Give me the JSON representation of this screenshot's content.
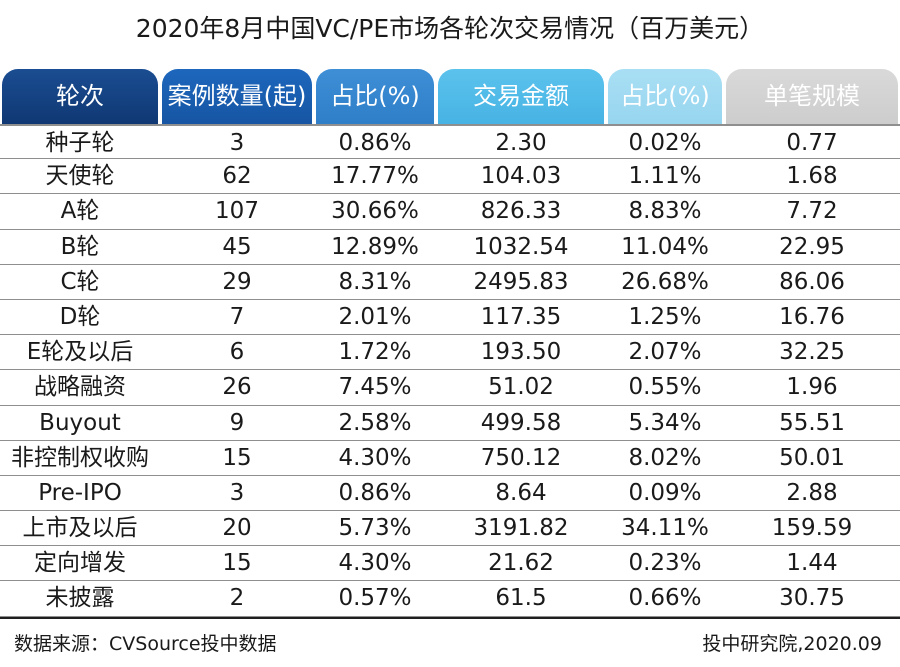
{
  "title": "2020年8月中国VC/PE市场各轮次交易情况（百万美元）",
  "table": {
    "headers": [
      "轮次",
      "案例数量(起)",
      "占比(%)",
      "交易金额",
      "占比(%)",
      "单笔规模"
    ],
    "header_colors": [
      "#0f3873",
      "#1655a3",
      "#2e7ec8",
      "#47b3e4",
      "#97d5ef",
      "#cdcdcd"
    ],
    "rows": [
      [
        "种子轮",
        "3",
        "0.86%",
        "2.30",
        "0.02%",
        "0.77"
      ],
      [
        "天使轮",
        "62",
        "17.77%",
        "104.03",
        "1.11%",
        "1.68"
      ],
      [
        "A轮",
        "107",
        "30.66%",
        "826.33",
        "8.83%",
        "7.72"
      ],
      [
        "B轮",
        "45",
        "12.89%",
        "1032.54",
        "11.04%",
        "22.95"
      ],
      [
        "C轮",
        "29",
        "8.31%",
        "2495.83",
        "26.68%",
        "86.06"
      ],
      [
        "D轮",
        "7",
        "2.01%",
        "117.35",
        "1.25%",
        "16.76"
      ],
      [
        "E轮及以后",
        "6",
        "1.72%",
        "193.50",
        "2.07%",
        "32.25"
      ],
      [
        "战略融资",
        "26",
        "7.45%",
        "51.02",
        "0.55%",
        "1.96"
      ],
      [
        "Buyout",
        "9",
        "2.58%",
        "499.58",
        "5.34%",
        "55.51"
      ],
      [
        "非控制权收购",
        "15",
        "4.30%",
        "750.12",
        "8.02%",
        "50.01"
      ],
      [
        "Pre-IPO",
        "3",
        "0.86%",
        "8.64",
        "0.09%",
        "2.88"
      ],
      [
        "上市及以后",
        "20",
        "5.73%",
        "3191.82",
        "34.11%",
        "159.59"
      ],
      [
        "定向增发",
        "15",
        "4.30%",
        "21.62",
        "0.23%",
        "1.44"
      ],
      [
        "未披露",
        "2",
        "0.57%",
        "61.5",
        "0.66%",
        "30.75"
      ]
    ]
  },
  "footer": {
    "source": "数据来源：CVSource投中数据",
    "credit": "投中研究院,2020.09"
  }
}
